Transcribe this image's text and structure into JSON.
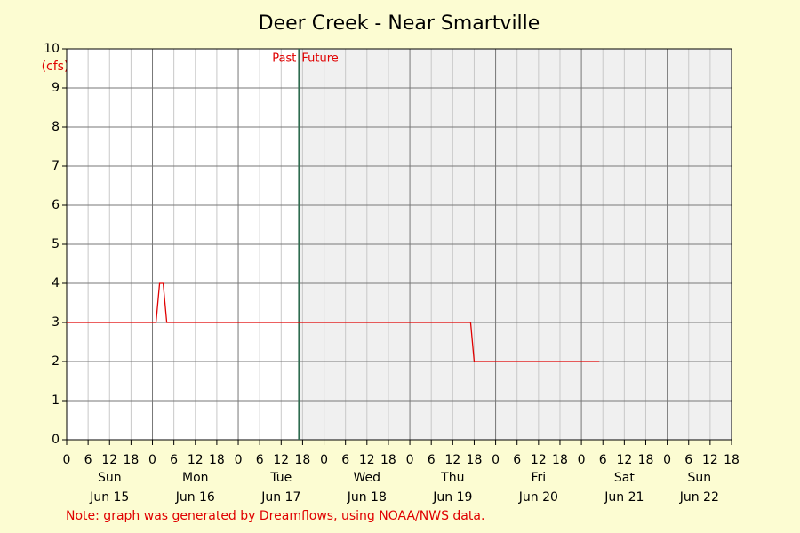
{
  "chart_data": {
    "type": "line",
    "title": "Deer Creek - Near Smartville",
    "ylabel": "(cfs)",
    "note": "Note: graph was generated by Dreamflows, using NOAA/NWS data.",
    "xlim": [
      0,
      186
    ],
    "ylim": [
      0,
      10
    ],
    "yticks": [
      0,
      1,
      2,
      3,
      4,
      5,
      6,
      7,
      8,
      9,
      10
    ],
    "xticks": [
      0,
      6,
      12,
      18,
      {
        "value": 24,
        "label": "0"
      },
      {
        "value": 30,
        "label": "6"
      },
      {
        "value": 36,
        "label": "12"
      },
      {
        "value": 42,
        "label": "18"
      },
      {
        "value": 48,
        "label": "0"
      },
      {
        "value": 54,
        "label": "6"
      },
      {
        "value": 60,
        "label": "12"
      },
      {
        "value": 66,
        "label": "18"
      },
      {
        "value": 72,
        "label": "0"
      },
      {
        "value": 78,
        "label": "6"
      },
      {
        "value": 84,
        "label": "12"
      },
      {
        "value": 90,
        "label": "18"
      },
      {
        "value": 96,
        "label": "0"
      },
      {
        "value": 102,
        "label": "6"
      },
      {
        "value": 108,
        "label": "12"
      },
      {
        "value": 114,
        "label": "18"
      },
      {
        "value": 120,
        "label": "0"
      },
      {
        "value": 126,
        "label": "6"
      },
      {
        "value": 132,
        "label": "12"
      },
      {
        "value": 138,
        "label": "18"
      },
      {
        "value": 144,
        "label": "0"
      },
      {
        "value": 150,
        "label": "6"
      },
      {
        "value": 156,
        "label": "12"
      },
      {
        "value": 162,
        "label": "18"
      },
      {
        "value": 168,
        "label": "0"
      },
      {
        "value": 174,
        "label": "6"
      },
      {
        "value": 180,
        "label": "12"
      },
      {
        "value": 186,
        "label": "18"
      }
    ],
    "day_labels": [
      {
        "value": 12,
        "weekday": "Sun",
        "date": "Jun 15"
      },
      {
        "value": 36,
        "weekday": "Mon",
        "date": "Jun 16"
      },
      {
        "value": 60,
        "weekday": "Tue",
        "date": "Jun 17"
      },
      {
        "value": 84,
        "weekday": "Wed",
        "date": "Jun 18"
      },
      {
        "value": 108,
        "weekday": "Thu",
        "date": "Jun 19"
      },
      {
        "value": 132,
        "weekday": "Fri",
        "date": "Jun 20"
      },
      {
        "value": 156,
        "weekday": "Sat",
        "date": "Jun 21"
      },
      {
        "value": 177,
        "weekday": "Sun",
        "date": "Jun 22"
      }
    ],
    "now": {
      "value": 65,
      "past_label": "Past",
      "future_label": "Future"
    },
    "grid": true,
    "series": [
      {
        "color": "#e00000",
        "x": [
          0,
          25,
          26,
          27,
          28,
          113,
          114,
          149
        ],
        "values": [
          3,
          3,
          4,
          4,
          3,
          3,
          2,
          2
        ]
      }
    ]
  }
}
